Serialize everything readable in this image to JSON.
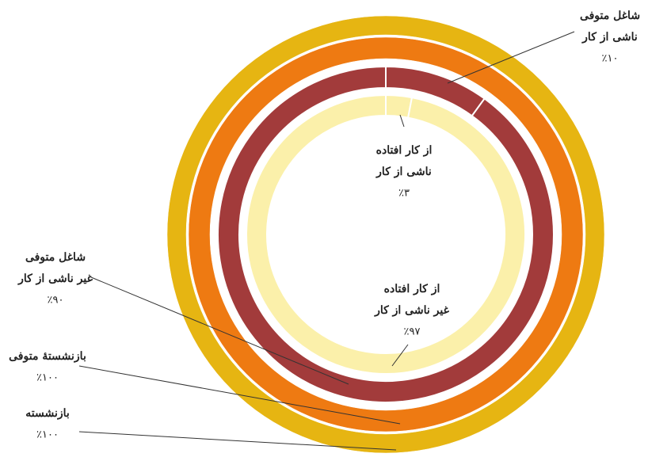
{
  "chart_data": {
    "type": "donut",
    "series": [
      {
        "name": "بازنشسته",
        "values": [
          100
        ],
        "value_labels": [
          "٪۱۰۰"
        ],
        "colors": [
          "#e6b512"
        ]
      },
      {
        "name": "بازنشستهٔ متوفی",
        "values": [
          100
        ],
        "value_labels": [
          "٪۱۰۰"
        ],
        "colors": [
          "#ee7a12"
        ]
      },
      {
        "name": "شاغل متوفی",
        "categories": [
          "ناشی از کار",
          "غیر ناشی از کار"
        ],
        "values": [
          10,
          90
        ],
        "value_labels": [
          "٪۱۰",
          "٪۹۰"
        ],
        "colors": [
          "#a23b3b",
          "#a23b3b"
        ]
      },
      {
        "name": "از کار افتاده",
        "categories": [
          "ناشی از کار",
          "غیر ناشی از کار"
        ],
        "values": [
          3,
          97
        ],
        "value_labels": [
          "٪۳",
          "٪۹۷"
        ],
        "colors": [
          "#fbf0aa",
          "#fbf0aa"
        ]
      }
    ]
  }
}
